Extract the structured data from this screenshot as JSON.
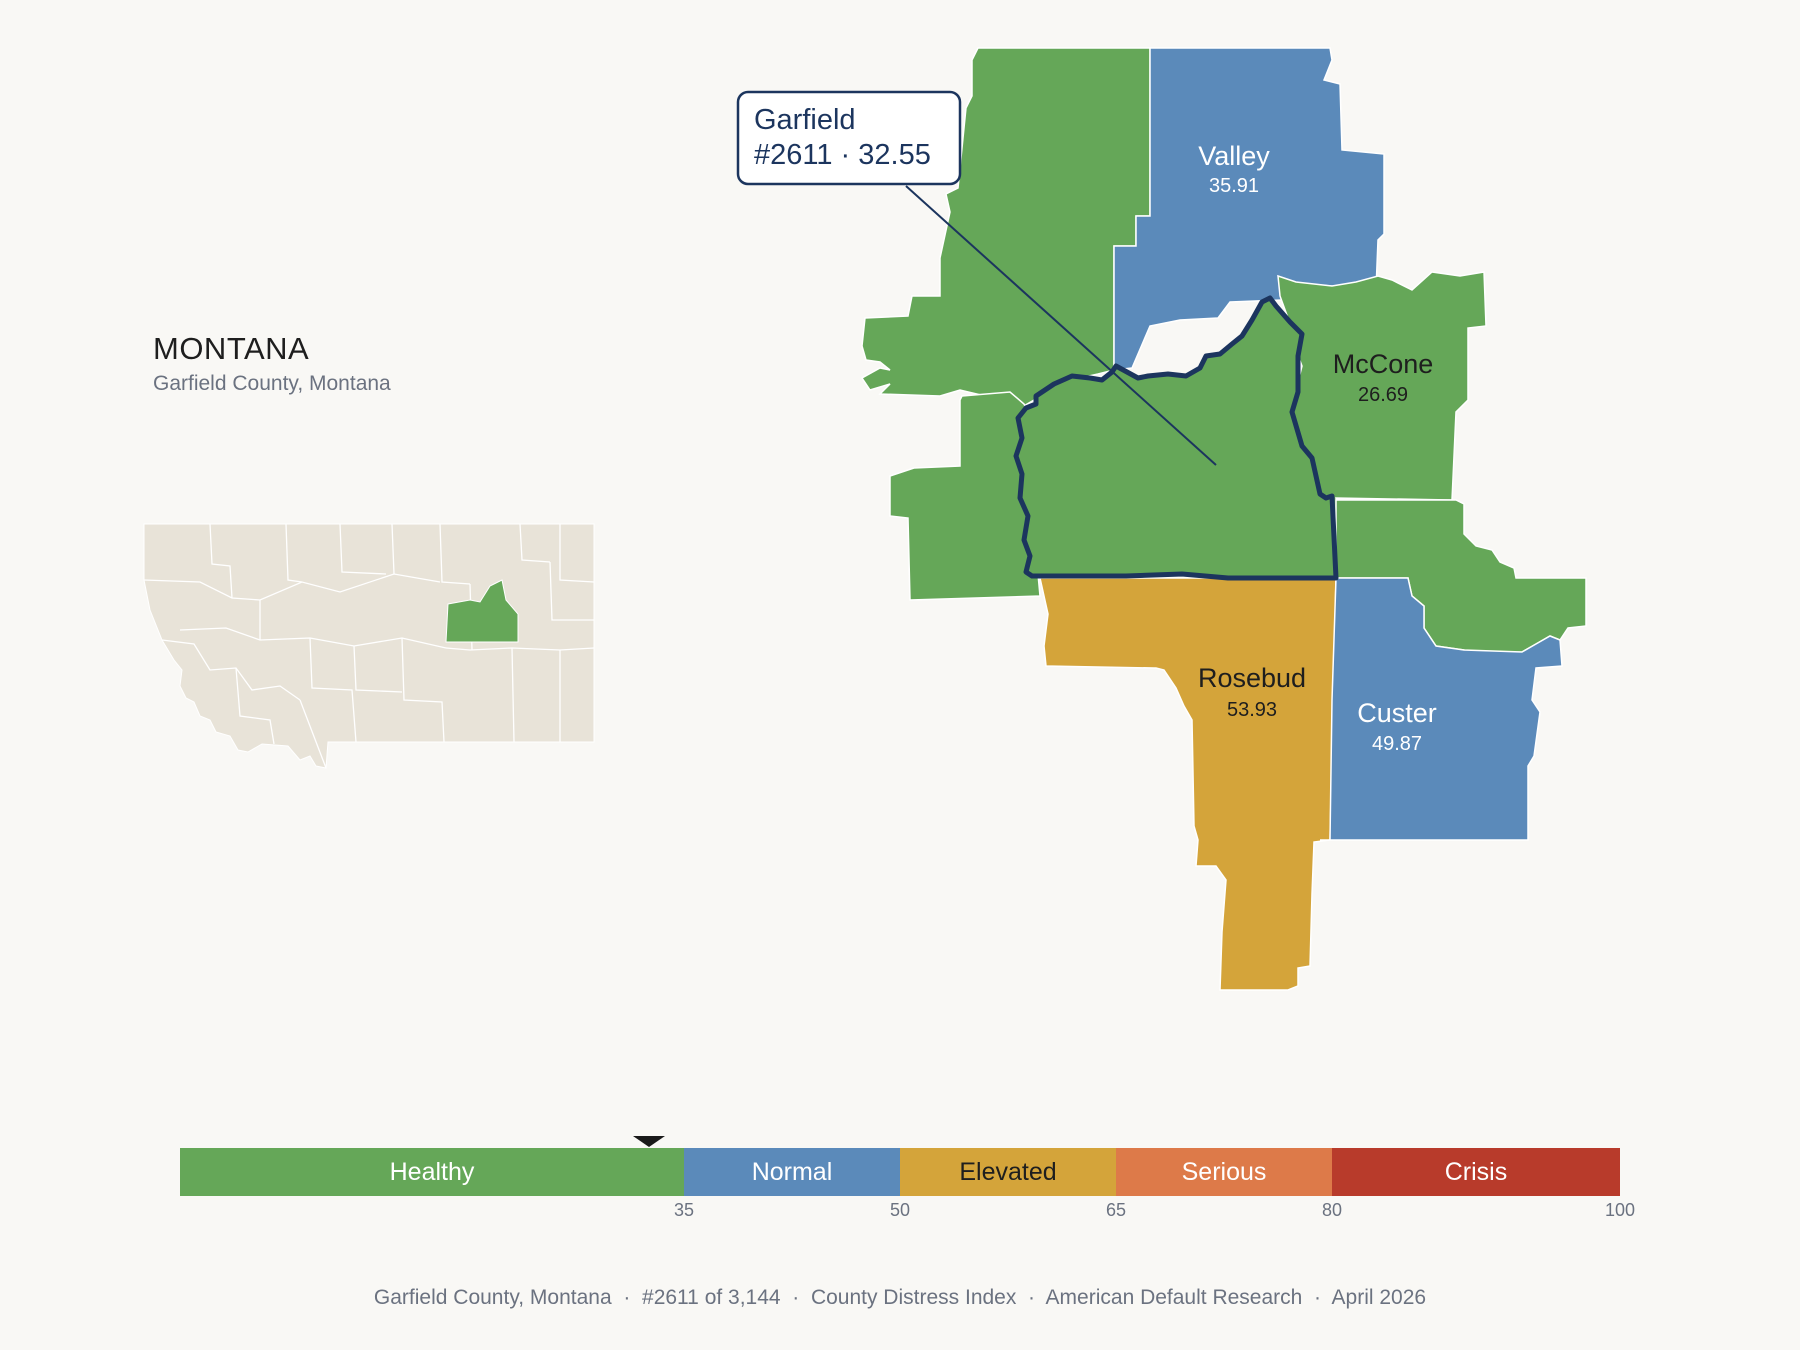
{
  "header": {
    "state_name": "MONTANA",
    "county_full": "Garfield County, Montana"
  },
  "callout": {
    "county": "Garfield",
    "rank_score": "#2611 · 32.55"
  },
  "counties": [
    {
      "name": "Valley",
      "score": "35.91",
      "category": "Normal"
    },
    {
      "name": "McCone",
      "score": "26.69",
      "category": "Healthy"
    },
    {
      "name": "Rosebud",
      "score": "53.93",
      "category": "Elevated"
    },
    {
      "name": "Custer",
      "score": "49.87",
      "category": "Normal"
    },
    {
      "name": "Garfield",
      "score": "32.55",
      "category": "Healthy",
      "selected": true
    }
  ],
  "scale": {
    "segments": [
      {
        "label": "Healthy",
        "from": 0,
        "to": 35,
        "color": "#65a758",
        "text_color": "#ffffff"
      },
      {
        "label": "Normal",
        "from": 35,
        "to": 50,
        "color": "#5b8aba",
        "text_color": "#ffffff"
      },
      {
        "label": "Elevated",
        "from": 50,
        "to": 65,
        "color": "#d4a43a",
        "text_color": "#1e1e1e"
      },
      {
        "label": "Serious",
        "from": 65,
        "to": 80,
        "color": "#dd7a49",
        "text_color": "#ffffff"
      },
      {
        "label": "Crisis",
        "from": 80,
        "to": 100,
        "color": "#b83b2b",
        "text_color": "#ffffff"
      }
    ],
    "ticks": [
      "35",
      "50",
      "65",
      "80",
      "100"
    ],
    "marker_value": 32.55
  },
  "colors": {
    "healthy": "#65a758",
    "normal": "#5b8aba",
    "elevated": "#d4a43a",
    "outline": "#1c355e",
    "inset_fill": "#e8e3d8"
  },
  "footer": {
    "county": "Garfield County, Montana",
    "rank": "#2611 of 3,144",
    "index": "County Distress Index",
    "publisher": "American Default Research",
    "date": "April 2026"
  }
}
